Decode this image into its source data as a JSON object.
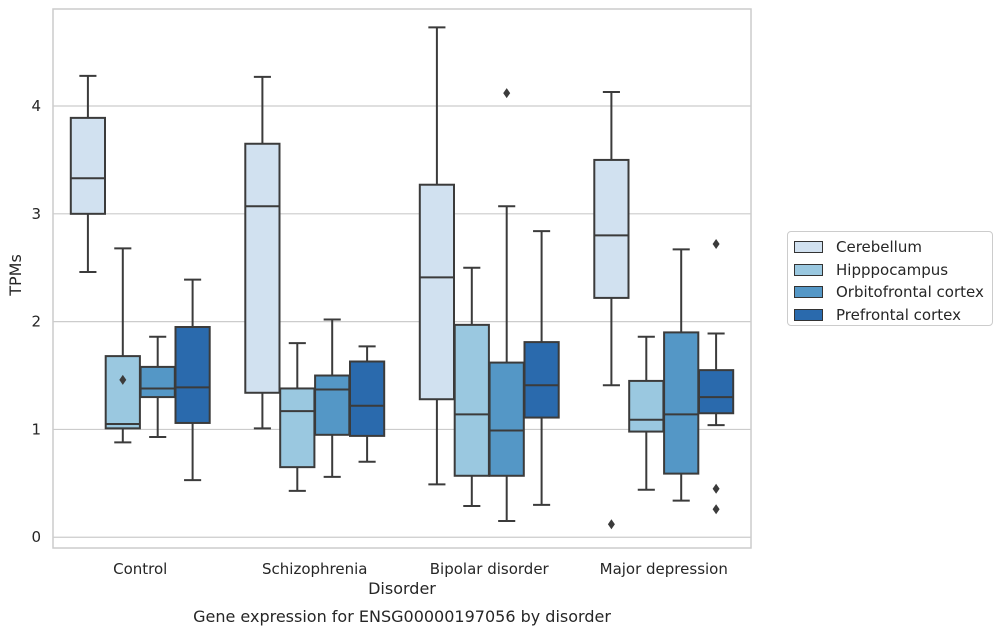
{
  "chart_data": {
    "type": "box",
    "title": "",
    "caption": "Gene expression for ENSG00000197056 by disorder",
    "xlabel": "Disorder",
    "ylabel": "TPMs",
    "ylim": [
      -0.1,
      4.9
    ],
    "yticks": [
      0,
      1,
      2,
      3,
      4
    ],
    "grid": "horizontal",
    "legend_position": "right",
    "categories": [
      "Control",
      "Schizophrenia",
      "Bipolar disorder",
      "Major depression"
    ],
    "series": [
      {
        "name": "Cerebellum",
        "color": "#d1e1f0",
        "boxes": [
          {
            "whisker_low": 2.46,
            "q1": 3.0,
            "median": 3.33,
            "q3": 3.89,
            "whisker_high": 4.28,
            "outliers": []
          },
          {
            "whisker_low": 1.01,
            "q1": 1.34,
            "median": 3.07,
            "q3": 3.65,
            "whisker_high": 4.27,
            "outliers": []
          },
          {
            "whisker_low": 0.49,
            "q1": 1.28,
            "median": 2.41,
            "q3": 3.27,
            "whisker_high": 4.73,
            "outliers": []
          },
          {
            "whisker_low": 1.41,
            "q1": 2.22,
            "median": 2.8,
            "q3": 3.5,
            "whisker_high": 4.13,
            "outliers": [
              0.12
            ]
          }
        ]
      },
      {
        "name": "Hipppocampus",
        "color": "#9ac8e0",
        "boxes": [
          {
            "whisker_low": 0.88,
            "q1": 1.01,
            "median": 1.05,
            "q3": 1.68,
            "whisker_high": 2.68,
            "outliers": [
              1.46
            ]
          },
          {
            "whisker_low": 0.43,
            "q1": 0.65,
            "median": 1.17,
            "q3": 1.38,
            "whisker_high": 1.8,
            "outliers": []
          },
          {
            "whisker_low": 0.29,
            "q1": 0.57,
            "median": 1.14,
            "q3": 1.97,
            "whisker_high": 2.5,
            "outliers": []
          },
          {
            "whisker_low": 0.44,
            "q1": 0.98,
            "median": 1.09,
            "q3": 1.45,
            "whisker_high": 1.86,
            "outliers": []
          }
        ]
      },
      {
        "name": "Orbitofrontal cortex",
        "color": "#5497c6",
        "boxes": [
          {
            "whisker_low": 0.93,
            "q1": 1.3,
            "median": 1.38,
            "q3": 1.58,
            "whisker_high": 1.86,
            "outliers": []
          },
          {
            "whisker_low": 0.56,
            "q1": 0.95,
            "median": 1.37,
            "q3": 1.5,
            "whisker_high": 2.02,
            "outliers": []
          },
          {
            "whisker_low": 0.15,
            "q1": 0.57,
            "median": 0.99,
            "q3": 1.62,
            "whisker_high": 3.07,
            "outliers": [
              4.12
            ]
          },
          {
            "whisker_low": 0.34,
            "q1": 0.59,
            "median": 1.14,
            "q3": 1.9,
            "whisker_high": 2.67,
            "outliers": []
          }
        ]
      },
      {
        "name": "Prefrontal cortex",
        "color": "#2a6aad",
        "boxes": [
          {
            "whisker_low": 0.53,
            "q1": 1.06,
            "median": 1.39,
            "q3": 1.95,
            "whisker_high": 2.39,
            "outliers": []
          },
          {
            "whisker_low": 0.7,
            "q1": 0.94,
            "median": 1.22,
            "q3": 1.63,
            "whisker_high": 1.77,
            "outliers": []
          },
          {
            "whisker_low": 0.3,
            "q1": 1.11,
            "median": 1.41,
            "q3": 1.81,
            "whisker_high": 2.84,
            "outliers": []
          },
          {
            "whisker_low": 1.04,
            "q1": 1.15,
            "median": 1.3,
            "q3": 1.55,
            "whisker_high": 1.89,
            "outliers": [
              0.26,
              0.45,
              2.72
            ]
          }
        ]
      }
    ]
  }
}
